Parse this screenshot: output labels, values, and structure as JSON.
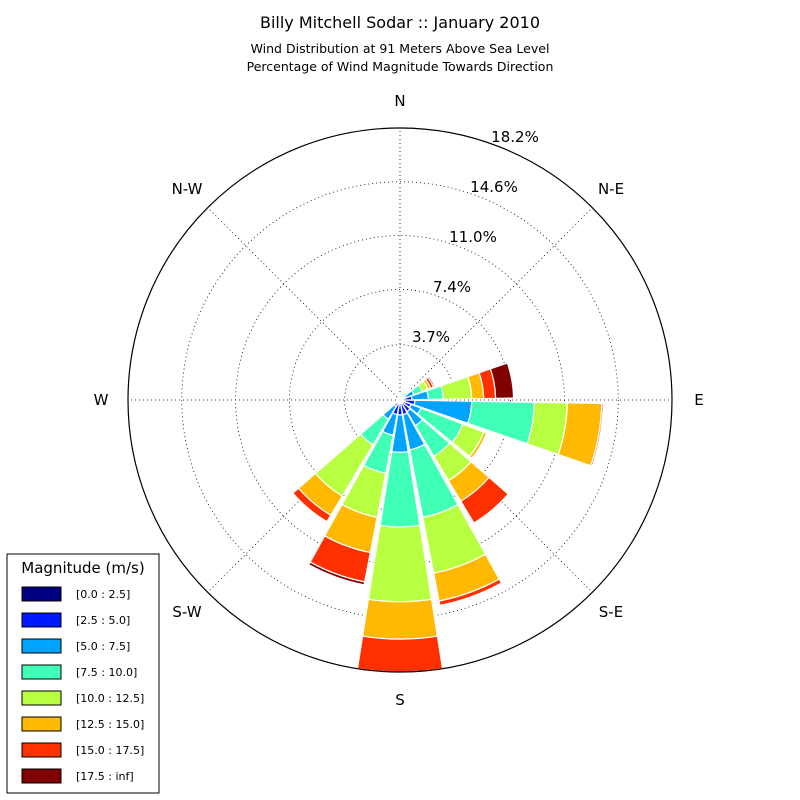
{
  "chart_data": {
    "type": "windrose",
    "title": "Billy Mitchell Sodar :: January 2010",
    "subtitle_lines": [
      "Wind Distribution at 91 Meters Above Sea Level",
      "Percentage of Wind Magnitude Towards Direction"
    ],
    "direction_labels": [
      "N",
      "N-E",
      "E",
      "S-E",
      "S",
      "S-W",
      "W",
      "N-W"
    ],
    "radial_tick_values": [
      3.7,
      7.4,
      11.0,
      14.6,
      18.2
    ],
    "radial_tick_labels": [
      "3.7%",
      "7.4%",
      "11.0%",
      "14.6%",
      "18.2%"
    ],
    "rmax": 18.2,
    "legend": {
      "title": "Magnitude (m/s)",
      "placement": "lower-left",
      "bins": [
        {
          "label": "[0.0 : 2.5]",
          "color": "#000080"
        },
        {
          "label": "[2.5 : 5.0]",
          "color": "#0019ff"
        },
        {
          "label": "[5.0 : 7.5]",
          "color": "#00a4ff"
        },
        {
          "label": "[7.5 : 10.0]",
          "color": "#40ffb7"
        },
        {
          "label": "[10.0 : 12.5]",
          "color": "#b7ff40"
        },
        {
          "label": "[12.5 : 15.0]",
          "color": "#ffb900"
        },
        {
          "label": "[15.0 : 17.5]",
          "color": "#ff3000"
        },
        {
          "label": "[17.5 : inf]",
          "color": "#800000"
        }
      ]
    },
    "sector_width_deg": 18,
    "sectors": [
      {
        "direction_deg": 0,
        "cumulative": [
          0.05,
          0.1,
          0.15,
          0.2,
          0.25,
          0.3,
          0.35,
          0.4
        ]
      },
      {
        "direction_deg": 20,
        "cumulative": [
          0.05,
          0.15,
          0.3,
          0.5,
          0.6,
          0.7,
          0.75,
          0.8
        ]
      },
      {
        "direction_deg": 40,
        "cumulative": [
          0.05,
          0.2,
          0.4,
          0.6,
          0.7,
          0.8,
          0.85,
          0.9
        ]
      },
      {
        "direction_deg": 60,
        "cumulative": [
          0.1,
          0.4,
          1.0,
          1.6,
          2.0,
          2.2,
          2.4,
          2.5
        ]
      },
      {
        "direction_deg": 80,
        "cumulative": [
          0.1,
          0.8,
          1.9,
          2.9,
          4.8,
          5.6,
          6.4,
          7.6
        ]
      },
      {
        "direction_deg": 100,
        "cumulative": [
          0.1,
          1.0,
          4.8,
          9.0,
          11.2,
          13.5,
          13.6,
          13.6
        ]
      },
      {
        "direction_deg": 120,
        "cumulative": [
          0.1,
          0.8,
          1.5,
          4.5,
          6.0,
          6.2,
          6.2,
          6.2
        ]
      },
      {
        "direction_deg": 140,
        "cumulative": [
          0.1,
          0.9,
          2.0,
          4.4,
          6.3,
          7.9,
          9.6,
          9.6
        ]
      },
      {
        "direction_deg": 160,
        "cumulative": [
          0.1,
          1.0,
          3.4,
          8.0,
          11.8,
          13.7,
          14.0,
          14.0
        ]
      },
      {
        "direction_deg": 180,
        "cumulative": [
          0.1,
          1.0,
          3.5,
          8.5,
          13.5,
          16.0,
          18.2,
          18.2
        ]
      },
      {
        "direction_deg": 200,
        "cumulative": [
          0.1,
          1.0,
          2.4,
          5.0,
          8.0,
          10.4,
          12.4,
          12.6
        ]
      },
      {
        "direction_deg": 220,
        "cumulative": [
          0.1,
          0.5,
          1.5,
          3.5,
          7.5,
          9.0,
          9.5,
          9.5
        ]
      },
      {
        "direction_deg": 240,
        "cumulative": [
          0.05,
          0.15,
          0.2,
          0.3,
          0.4,
          0.45,
          0.45,
          0.45
        ]
      }
    ]
  }
}
